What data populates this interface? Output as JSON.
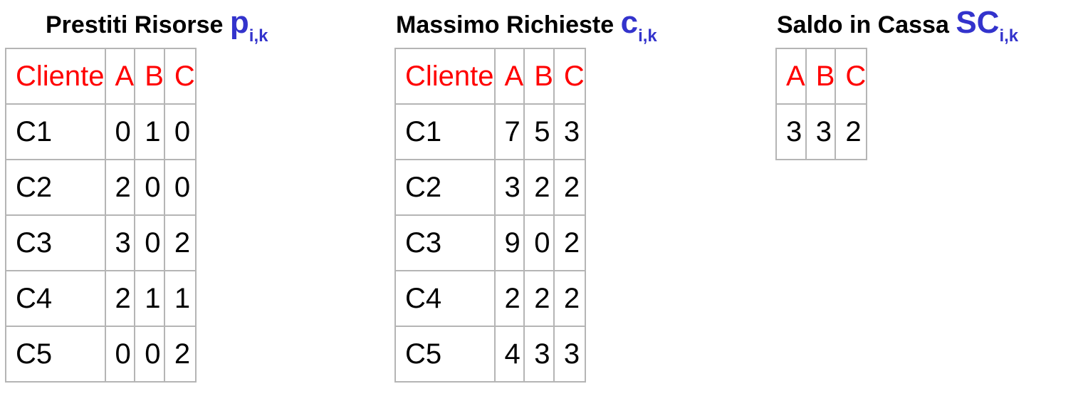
{
  "accent_color": "#3333cc",
  "header_color": "#ff0000",
  "loans": {
    "title": "Prestiti Risorse",
    "symbol": "p",
    "subscript": "i,k",
    "headers": [
      "Cliente",
      "A",
      "B",
      "C"
    ],
    "rows": [
      [
        "C1",
        "0",
        "1",
        "0"
      ],
      [
        "C2",
        "2",
        "0",
        "0"
      ],
      [
        "C3",
        "3",
        "0",
        "2"
      ],
      [
        "C4",
        "2",
        "1",
        "1"
      ],
      [
        "C5",
        "0",
        "0",
        "2"
      ]
    ]
  },
  "max_requests": {
    "title": "Massimo Richieste",
    "symbol": "c",
    "subscript": "i,k",
    "headers": [
      "Cliente",
      "A",
      "B",
      "C"
    ],
    "rows": [
      [
        "C1",
        "7",
        "5",
        "3"
      ],
      [
        "C2",
        "3",
        "2",
        "2"
      ],
      [
        "C3",
        "9",
        "0",
        "2"
      ],
      [
        "C4",
        "2",
        "2",
        "2"
      ],
      [
        "C5",
        "4",
        "3",
        "3"
      ]
    ]
  },
  "cash_balance": {
    "title": "Saldo in Cassa",
    "symbol": "SC",
    "subscript": "i,k",
    "headers": [
      "A",
      "B",
      "C"
    ],
    "values": [
      "3",
      "3",
      "2"
    ]
  }
}
